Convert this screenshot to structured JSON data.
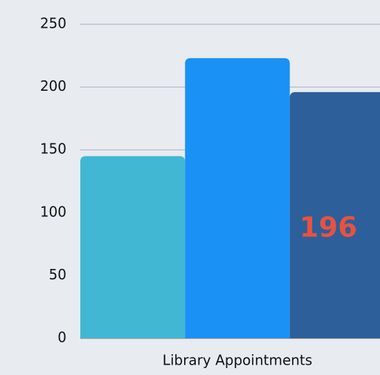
{
  "chart_data": {
    "type": "bar",
    "categories": [
      "Library Appointments"
    ],
    "series": [
      {
        "color": "#42b7d4",
        "values": [
          145
        ]
      },
      {
        "color": "#1a91f5",
        "values": [
          223
        ]
      },
      {
        "color": "#2d5f9a",
        "values": [
          196
        ],
        "show_value_label": true
      }
    ],
    "value_label_color": "#e8523f",
    "ylim": [
      0,
      250
    ],
    "yticks": [
      0,
      50,
      100,
      150,
      200,
      250
    ],
    "grid": true
  }
}
